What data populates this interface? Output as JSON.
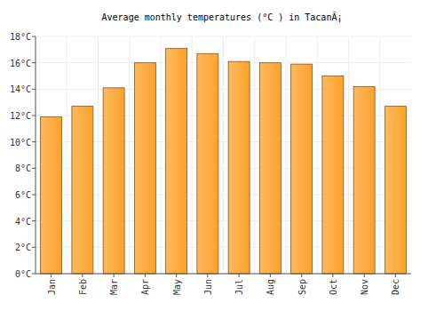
{
  "chart_data": {
    "type": "bar",
    "title": "Average monthly temperatures (°C ) in TacanÃ¡",
    "categories": [
      "Jan",
      "Feb",
      "Mar",
      "Apr",
      "May",
      "Jun",
      "Jul",
      "Aug",
      "Sep",
      "Oct",
      "Nov",
      "Dec"
    ],
    "values": [
      11.9,
      12.7,
      14.1,
      16.0,
      17.1,
      16.7,
      16.1,
      16.0,
      15.9,
      15.0,
      14.2,
      12.7
    ],
    "color": "#fca22a",
    "ylim": [
      0,
      18
    ],
    "yticks": [
      {
        "value": 0,
        "label": "0°C"
      },
      {
        "value": 2,
        "label": "2°C"
      },
      {
        "value": 4,
        "label": "4°C"
      },
      {
        "value": 6,
        "label": "6°C"
      },
      {
        "value": 8,
        "label": "8°C"
      },
      {
        "value": 10,
        "label": "10°C"
      },
      {
        "value": 12,
        "label": "12°C"
      },
      {
        "value": 14,
        "label": "14°C"
      },
      {
        "value": 16,
        "label": "16°C"
      },
      {
        "value": 18,
        "label": "18°C"
      }
    ],
    "grid": true
  }
}
